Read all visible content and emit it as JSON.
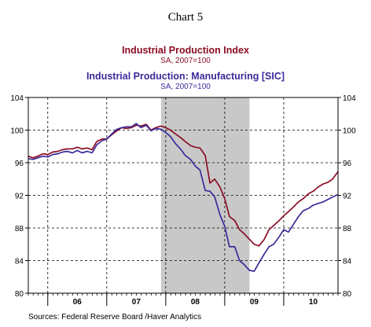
{
  "chart_number": "Chart 5",
  "source": "Sources:  Federal Reserve Board /Haver Analytics",
  "colors": {
    "series1": "#8b0e25",
    "series2": "#3b2a9b",
    "recession": "#c8c8c8",
    "grid": "#000000"
  },
  "chart_data": {
    "type": "line",
    "title": "Industrial Production Index",
    "title_color": "#8b0e25",
    "subtitle": "SA, 2007=100",
    "title2": "Industrial Production: Manufacturing [SIC]",
    "title2_color": "#3b2a9b",
    "subtitle2": "SA, 2007=100",
    "ylim": [
      80,
      104
    ],
    "yticks": [
      80,
      84,
      88,
      92,
      96,
      100,
      104
    ],
    "xlim": [
      2005.67,
      2010.92
    ],
    "year_labels": [
      {
        "label": "06",
        "x": 2006.5
      },
      {
        "label": "07",
        "x": 2007.5
      },
      {
        "label": "08",
        "x": 2008.5
      },
      {
        "label": "09",
        "x": 2009.5
      },
      {
        "label": "10",
        "x": 2010.5
      }
    ],
    "year_boundaries": [
      2006,
      2007,
      2008,
      2009,
      2010
    ],
    "recession": [
      2007.92,
      2009.42
    ],
    "grid": true,
    "series": [
      {
        "name": "Industrial Production Index",
        "color": "#8b0e25",
        "x": [
          2005.67,
          2005.75,
          2005.83,
          2005.92,
          2006.0,
          2006.08,
          2006.17,
          2006.25,
          2006.33,
          2006.42,
          2006.5,
          2006.58,
          2006.67,
          2006.75,
          2006.83,
          2006.92,
          2007.0,
          2007.08,
          2007.17,
          2007.25,
          2007.33,
          2007.42,
          2007.5,
          2007.58,
          2007.67,
          2007.75,
          2007.83,
          2007.92,
          2008.0,
          2008.08,
          2008.17,
          2008.25,
          2008.33,
          2008.42,
          2008.5,
          2008.58,
          2008.67,
          2008.75,
          2008.83,
          2008.92,
          2009.0,
          2009.08,
          2009.17,
          2009.25,
          2009.33,
          2009.42,
          2009.5,
          2009.58,
          2009.67,
          2009.75,
          2009.83,
          2009.92,
          2010.0,
          2010.08,
          2010.17,
          2010.25,
          2010.33,
          2010.42,
          2010.5,
          2010.58,
          2010.67,
          2010.75,
          2010.83,
          2010.92
        ],
        "values": [
          96.8,
          96.6,
          96.8,
          97.1,
          97.0,
          97.3,
          97.4,
          97.6,
          97.7,
          97.7,
          97.9,
          97.7,
          97.8,
          97.6,
          98.6,
          98.9,
          98.9,
          99.4,
          99.9,
          100.3,
          100.2,
          100.3,
          100.6,
          100.5,
          100.7,
          100.0,
          100.3,
          100.5,
          100.3,
          100.0,
          99.5,
          99.1,
          98.6,
          98.1,
          97.9,
          97.8,
          96.9,
          93.5,
          94.0,
          93.0,
          91.6,
          89.4,
          88.9,
          87.8,
          87.3,
          86.6,
          86.0,
          85.8,
          86.6,
          87.8,
          88.3,
          88.9,
          89.5,
          90.0,
          90.6,
          91.2,
          91.6,
          92.2,
          92.5,
          93.0,
          93.4,
          93.6,
          94.0,
          94.9
        ]
      },
      {
        "name": "Industrial Production: Manufacturing [SIC]",
        "color": "#3b2a9b",
        "x": [
          2005.67,
          2005.75,
          2005.83,
          2005.92,
          2006.0,
          2006.08,
          2006.17,
          2006.25,
          2006.33,
          2006.42,
          2006.5,
          2006.58,
          2006.67,
          2006.75,
          2006.83,
          2006.92,
          2007.0,
          2007.08,
          2007.17,
          2007.25,
          2007.33,
          2007.42,
          2007.5,
          2007.58,
          2007.67,
          2007.75,
          2007.83,
          2007.92,
          2008.0,
          2008.08,
          2008.17,
          2008.25,
          2008.33,
          2008.42,
          2008.5,
          2008.58,
          2008.67,
          2008.75,
          2008.83,
          2008.92,
          2009.0,
          2009.08,
          2009.17,
          2009.25,
          2009.33,
          2009.42,
          2009.5,
          2009.58,
          2009.67,
          2009.75,
          2009.83,
          2009.92,
          2010.0,
          2010.08,
          2010.17,
          2010.25,
          2010.33,
          2010.42,
          2010.5,
          2010.58,
          2010.67,
          2010.75,
          2010.83,
          2010.92
        ],
        "values": [
          96.5,
          96.4,
          96.6,
          96.8,
          96.7,
          97.0,
          97.1,
          97.3,
          97.4,
          97.2,
          97.5,
          97.2,
          97.4,
          97.2,
          98.2,
          98.7,
          98.9,
          99.5,
          100.1,
          100.3,
          100.4,
          100.4,
          100.8,
          100.3,
          100.6,
          99.9,
          100.2,
          100.1,
          99.7,
          99.2,
          98.3,
          97.7,
          96.9,
          96.4,
          95.6,
          95.1,
          92.6,
          92.5,
          91.8,
          89.6,
          88.2,
          85.7,
          85.7,
          84.0,
          83.5,
          82.8,
          82.7,
          83.7,
          84.8,
          85.7,
          86.0,
          86.9,
          87.8,
          87.5,
          88.5,
          89.4,
          90.1,
          90.4,
          90.8,
          91.0,
          91.2,
          91.5,
          91.8,
          92.1
        ]
      }
    ]
  }
}
